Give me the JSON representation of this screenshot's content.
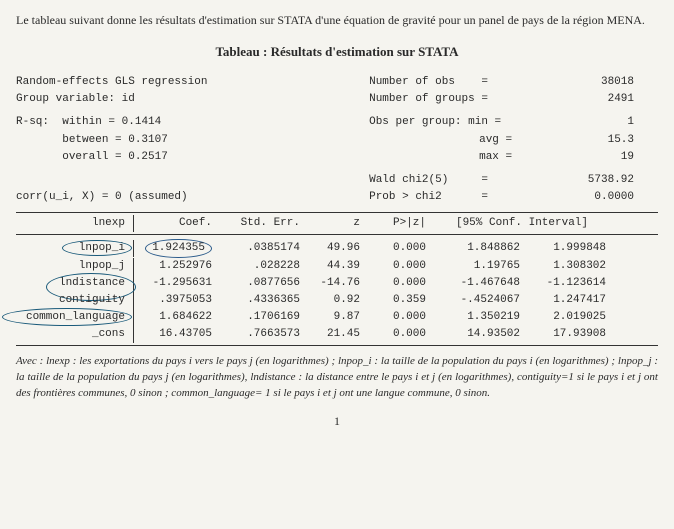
{
  "intro_text": "Le tableau suivant donne les résultats d'estimation sur STATA d'une équation de gravité pour un panel de pays de la région MENA.",
  "table_title": "Tableau : Résultats d'estimation sur STATA",
  "header": {
    "line1_left": "Random-effects GLS regression",
    "line2_left": "Group variable: id",
    "nobs_label": "Number of obs",
    "nobs_value": "38018",
    "ngroups_label": "Number of groups",
    "ngroups_value": "2491"
  },
  "rsq": {
    "label": "R-sq:",
    "within_label": "within  = ",
    "within_val": "0.1414",
    "between_label": "between = ",
    "between_val": "0.3107",
    "overall_label": "overall = ",
    "overall_val": "0.2517"
  },
  "obsgroup": {
    "label": "Obs per group: min =",
    "min": "1",
    "avg_label": "avg =",
    "avg": "15.3",
    "max_label": "max =",
    "max": "19"
  },
  "chi": {
    "wald_label": "Wald chi2(5)",
    "wald_val": "5738.92",
    "prob_label": "Prob > chi2",
    "prob_val": "0.0000"
  },
  "corr": "corr(u_i, X)   = 0 (assumed)",
  "cols": {
    "depvar": "lnexp",
    "coef": "Coef.",
    "se": "Std. Err.",
    "z": "z",
    "p": "P>|z|",
    "ci": "[95% Conf. Interval]"
  },
  "rows": [
    {
      "var": "lnpop_i",
      "coef": "1.924355",
      "se": ".0385174",
      "z": "49.96",
      "p": "0.000",
      "lo": "1.848862",
      "hi": "1.999848",
      "circled_coef": true,
      "circled_var": "circ1"
    },
    {
      "var": "lnpop_j",
      "coef": "1.252976",
      "se": ".028228",
      "z": "44.39",
      "p": "0.000",
      "lo": "1.19765",
      "hi": "1.308302"
    },
    {
      "var": "lndistance",
      "coef": "-1.295631",
      "se": ".0877656",
      "z": "-14.76",
      "p": "0.000",
      "lo": "-1.467648",
      "hi": "-1.123614",
      "circled_var": "circ2"
    },
    {
      "var": "contiguity",
      "coef": ".3975053",
      "se": ".4336365",
      "z": "0.92",
      "p": "0.359",
      "lo": "-.4524067",
      "hi": "1.247417"
    },
    {
      "var": "common_language",
      "coef": "1.684622",
      "se": ".1706169",
      "z": "9.87",
      "p": "0.000",
      "lo": "1.350219",
      "hi": "2.019025",
      "circled_var": "circ3"
    },
    {
      "var": "_cons",
      "coef": "16.43705",
      "se": ".7663573",
      "z": "21.45",
      "p": "0.000",
      "lo": "14.93502",
      "hi": "17.93908"
    }
  ],
  "footnote": "Avec : lnexp : les exportations du pays i vers le pays j (en logarithmes) ; lnpop_i : la taille de la population du pays i (en logarithmes) ; lnpop_j : la taille de la population du pays j (en logarithmes), lndistance : la distance entre le pays i et j (en logarithmes), contiguity=1 si le pays i et j ont des frontières communes, 0 sinon ; common_language= 1 si le pays i et j ont une langue commune, 0 sinon.",
  "page_number": "1"
}
